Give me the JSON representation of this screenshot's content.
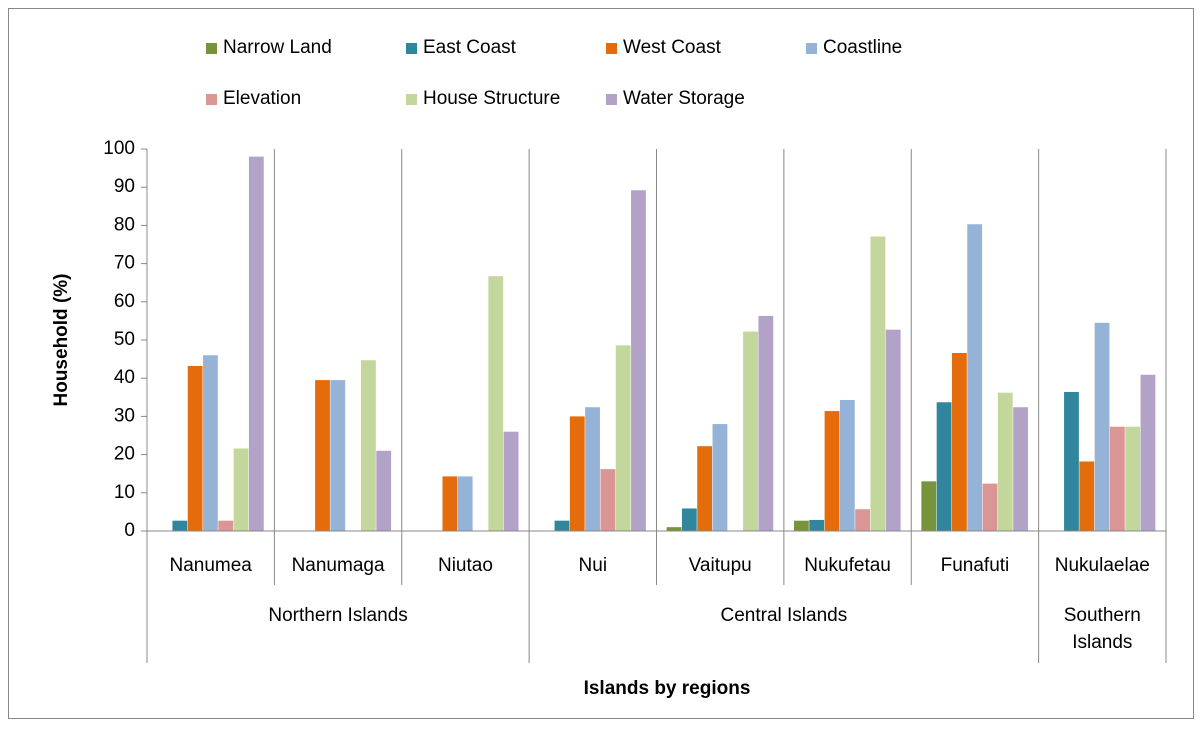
{
  "chart_data": {
    "type": "bar",
    "y_label": "Household (%)",
    "x_label": "Islands by regions",
    "categories": [
      "Nanumea",
      "Nanumaga",
      "Niutao",
      "Nui",
      "Vaitupu",
      "Nukufetau",
      "Funafuti",
      "Nukulaelae"
    ],
    "groups": [
      {
        "name": "Northern Islands",
        "count": 3
      },
      {
        "name": "Central Islands",
        "count": 4
      },
      {
        "name": "Southern Islands",
        "count": 1
      }
    ],
    "series": [
      {
        "name": "Narrow Land",
        "color": "#77933c",
        "values": [
          0,
          0,
          0,
          0,
          1,
          2.7,
          13,
          0
        ]
      },
      {
        "name": "East Coast",
        "color": "#31859c",
        "values": [
          2.7,
          0,
          0,
          2.7,
          5.9,
          2.9,
          33.7,
          36.4
        ]
      },
      {
        "name": "West Coast",
        "color": "#e46c0a",
        "values": [
          43.2,
          39.5,
          14.3,
          30,
          22.2,
          31.4,
          46.6,
          18.2
        ]
      },
      {
        "name": "Coastline",
        "color": "#95b3d7",
        "values": [
          46,
          39.5,
          14.3,
          32.4,
          28,
          34.3,
          80.3,
          54.5
        ]
      },
      {
        "name": "Elevation",
        "color": "#d99694",
        "values": [
          2.7,
          0,
          0,
          16.2,
          0,
          5.7,
          12.4,
          27.3
        ]
      },
      {
        "name": "House Structure",
        "color": "#c3d69b",
        "values": [
          21.6,
          44.7,
          66.7,
          48.6,
          52.2,
          77.1,
          36.2,
          27.3
        ]
      },
      {
        "name": "Water Storage",
        "color": "#b3a2c7",
        "values": [
          98,
          21,
          26,
          89.2,
          56.3,
          52.7,
          32.4,
          40.9
        ]
      }
    ],
    "ylim": [
      0,
      100
    ],
    "yticks": [
      0,
      10,
      20,
      30,
      40,
      50,
      60,
      70,
      80,
      90,
      100
    ]
  }
}
